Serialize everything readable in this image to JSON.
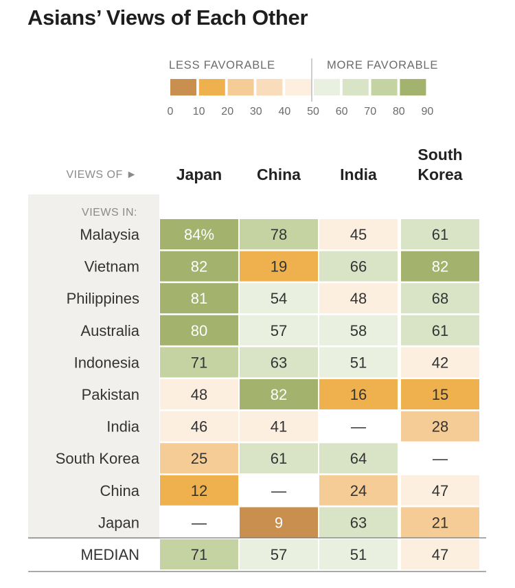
{
  "title": "Asians’ Views of Each Other",
  "legend": {
    "less_label": "LESS FAVORABLE",
    "more_label": "MORE FAVORABLE",
    "ticks": [
      "0",
      "10",
      "20",
      "30",
      "40",
      "50",
      "60",
      "70",
      "80",
      "90"
    ],
    "bins": [
      {
        "from": 0,
        "to": 10,
        "color": "#c98f4f"
      },
      {
        "from": 10,
        "to": 20,
        "color": "#eeb14e"
      },
      {
        "from": 20,
        "to": 30,
        "color": "#f5cc95"
      },
      {
        "from": 30,
        "to": 40,
        "color": "#f9ddbb"
      },
      {
        "from": 40,
        "to": 50,
        "color": "#fcefe0"
      },
      {
        "from": 50,
        "to": 60,
        "color": "#eaf0df"
      },
      {
        "from": 60,
        "to": 70,
        "color": "#d9e4c7"
      },
      {
        "from": 70,
        "to": 80,
        "color": "#c5d3a3"
      },
      {
        "from": 80,
        "to": 90,
        "color": "#a3b26c"
      }
    ]
  },
  "chart_data": {
    "type": "table",
    "title": "Asians’ Views of Each Other",
    "views_of_label": "VIEWS OF ►",
    "views_in_label": "VIEWS IN:",
    "columns": [
      "Japan",
      "China",
      "India",
      "South Korea"
    ],
    "rows": [
      {
        "name": "Malaysia",
        "values": [
          84,
          78,
          45,
          61
        ],
        "display": [
          "84%",
          "78",
          "45",
          "61"
        ]
      },
      {
        "name": "Vietnam",
        "values": [
          82,
          19,
          66,
          82
        ],
        "display": [
          "82",
          "19",
          "66",
          "82"
        ]
      },
      {
        "name": "Philippines",
        "values": [
          81,
          54,
          48,
          68
        ],
        "display": [
          "81",
          "54",
          "48",
          "68"
        ]
      },
      {
        "name": "Australia",
        "values": [
          80,
          57,
          58,
          61
        ],
        "display": [
          "80",
          "57",
          "58",
          "61"
        ]
      },
      {
        "name": "Indonesia",
        "values": [
          71,
          63,
          51,
          42
        ],
        "display": [
          "71",
          "63",
          "51",
          "42"
        ]
      },
      {
        "name": "Pakistan",
        "values": [
          48,
          82,
          16,
          15
        ],
        "display": [
          "48",
          "82",
          "16",
          "15"
        ]
      },
      {
        "name": "India",
        "values": [
          46,
          41,
          null,
          28
        ],
        "display": [
          "46",
          "41",
          "—",
          "28"
        ]
      },
      {
        "name": "South Korea",
        "values": [
          25,
          61,
          64,
          null
        ],
        "display": [
          "25",
          "61",
          "64",
          "—"
        ]
      },
      {
        "name": "China",
        "values": [
          12,
          null,
          24,
          47
        ],
        "display": [
          "12",
          "—",
          "24",
          "47"
        ]
      },
      {
        "name": "Japan",
        "values": [
          null,
          9,
          63,
          21
        ],
        "display": [
          "—",
          "9",
          "63",
          "21"
        ]
      }
    ],
    "median": {
      "name": "MEDIAN",
      "values": [
        71,
        57,
        51,
        47
      ],
      "display": [
        "71",
        "57",
        "51",
        "47"
      ]
    }
  }
}
